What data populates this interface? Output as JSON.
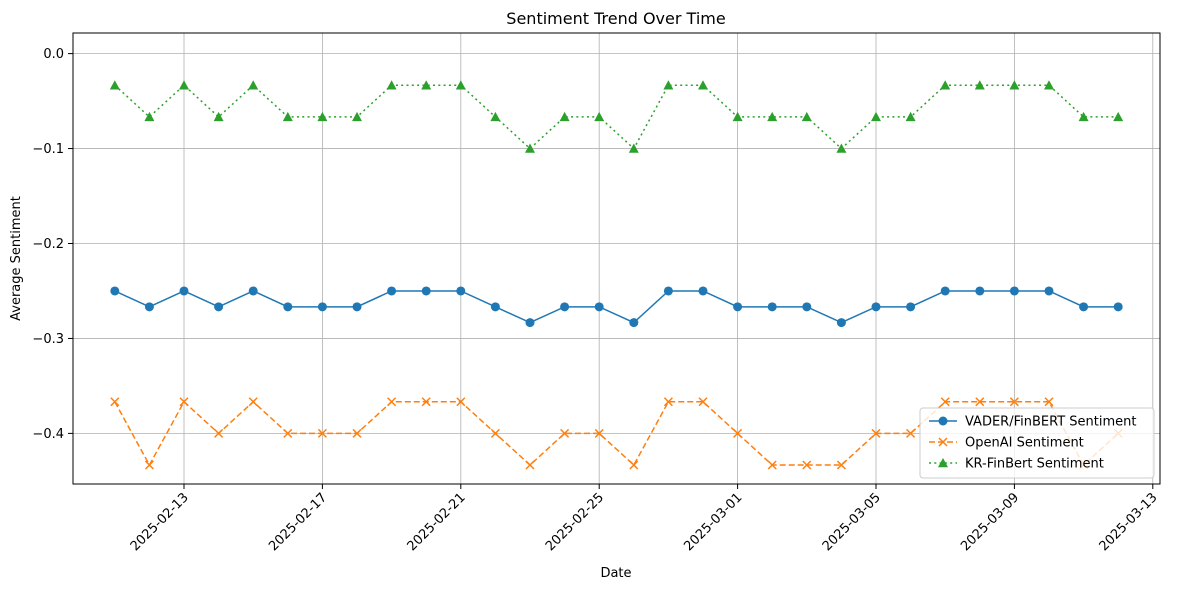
{
  "chart_data": {
    "type": "line",
    "title": "Sentiment Trend Over Time",
    "xlabel": "Date",
    "ylabel": "Average Sentiment",
    "x": [
      "2025-02-11",
      "2025-02-12",
      "2025-02-13",
      "2025-02-14",
      "2025-02-15",
      "2025-02-16",
      "2025-02-17",
      "2025-02-18",
      "2025-02-19",
      "2025-02-20",
      "2025-02-21",
      "2025-02-22",
      "2025-02-23",
      "2025-02-24",
      "2025-02-25",
      "2025-02-26",
      "2025-02-27",
      "2025-02-28",
      "2025-03-01",
      "2025-03-02",
      "2025-03-03",
      "2025-03-04",
      "2025-03-05",
      "2025-03-06",
      "2025-03-07",
      "2025-03-08",
      "2025-03-09",
      "2025-03-10",
      "2025-03-11",
      "2025-03-12"
    ],
    "x_ticks": [
      "2025-02-13",
      "2025-02-17",
      "2025-02-21",
      "2025-02-25",
      "2025-03-01",
      "2025-03-05",
      "2025-03-09",
      "2025-03-13"
    ],
    "xlim": [
      "2025-02-09T19:00",
      "2025-03-13T05:00"
    ],
    "y_ticks": [
      0.0,
      -0.1,
      -0.2,
      -0.3,
      -0.4
    ],
    "y_tick_labels": [
      "0.0",
      "−0.1",
      "−0.2",
      "−0.3",
      "−0.4"
    ],
    "ylim": [
      -0.4533,
      0.0217
    ],
    "grid": true,
    "legend_position": "lower-right",
    "series": [
      {
        "name": "VADER/FinBERT Sentiment",
        "color": "#1f77b4",
        "line_style": "solid",
        "marker": "circle",
        "values": [
          -0.25,
          -0.2667,
          -0.25,
          -0.2667,
          -0.25,
          -0.2667,
          -0.2667,
          -0.2667,
          -0.25,
          -0.25,
          -0.25,
          -0.2667,
          -0.2833,
          -0.2667,
          -0.2667,
          -0.2833,
          -0.25,
          -0.25,
          -0.2667,
          -0.2667,
          -0.2667,
          -0.2833,
          -0.2667,
          -0.2667,
          -0.25,
          -0.25,
          -0.25,
          -0.25,
          -0.2667,
          -0.2667
        ]
      },
      {
        "name": "OpenAI Sentiment",
        "color": "#ff7f0e",
        "line_style": "dashed",
        "marker": "x",
        "values": [
          -0.3667,
          -0.4333,
          -0.3667,
          -0.4,
          -0.3667,
          -0.4,
          -0.4,
          -0.4,
          -0.3667,
          -0.3667,
          -0.3667,
          -0.4,
          -0.4333,
          -0.4,
          -0.4,
          -0.4333,
          -0.3667,
          -0.3667,
          -0.4,
          -0.4333,
          -0.4333,
          -0.4333,
          -0.4,
          -0.4,
          -0.3667,
          -0.3667,
          -0.3667,
          -0.3667,
          -0.4333,
          -0.4
        ]
      },
      {
        "name": "KR-FinBert Sentiment",
        "color": "#2ca02c",
        "line_style": "dotted",
        "marker": "triangle",
        "values": [
          -0.0333,
          -0.0667,
          -0.0333,
          -0.0667,
          -0.0333,
          -0.0667,
          -0.0667,
          -0.0667,
          -0.0333,
          -0.0333,
          -0.0333,
          -0.0667,
          -0.1,
          -0.0667,
          -0.0667,
          -0.1,
          -0.0333,
          -0.0333,
          -0.0667,
          -0.0667,
          -0.0667,
          -0.1,
          -0.0667,
          -0.0667,
          -0.0333,
          -0.0333,
          -0.0333,
          -0.0333,
          -0.0667,
          -0.0667
        ]
      }
    ]
  }
}
